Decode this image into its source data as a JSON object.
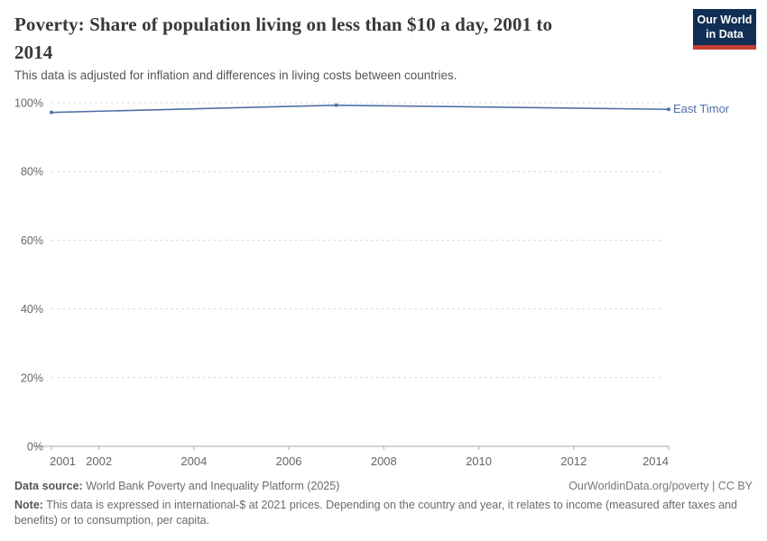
{
  "header": {
    "title_line1": "Poverty: Share of population living on less than $10 a day, 2001 to",
    "title_line2": "2014",
    "subtitle": "This data is adjusted for inflation and differences in living costs between countries.",
    "logo": {
      "line1": "Our World",
      "line2": "in Data",
      "bg_color": "#112e54",
      "accent_color": "#c53d33"
    }
  },
  "chart_data": {
    "type": "line",
    "title": "Poverty: Share of population living on less than $10 a day, 2001 to 2014",
    "xlabel": "",
    "ylabel": "",
    "xlim": [
      2001,
      2014
    ],
    "ylim": [
      0,
      100
    ],
    "xticks": [
      2001,
      2002,
      2004,
      2006,
      2008,
      2010,
      2012,
      2014
    ],
    "yticks": [
      0,
      20,
      40,
      60,
      80,
      100
    ],
    "ytick_suffix": "%",
    "grid": "horizontal-dashed",
    "legend_position": "end-of-line-label",
    "series": [
      {
        "name": "East Timor",
        "color": "#4F6FA8",
        "x": [
          2001,
          2007,
          2014
        ],
        "values": [
          97.2,
          99.3,
          98.1
        ],
        "markers": true
      }
    ]
  },
  "footer": {
    "data_source_label": "Data source:",
    "data_source_value": "World Bank Poverty and Inequality Platform (2025)",
    "credit": "OurWorldinData.org/poverty | CC BY",
    "note_label": "Note:",
    "note_text": "This data is expressed in international-$ at 2021 prices. Depending on the country and year, it relates to income (measured after taxes and benefits) or to consumption, per capita."
  }
}
